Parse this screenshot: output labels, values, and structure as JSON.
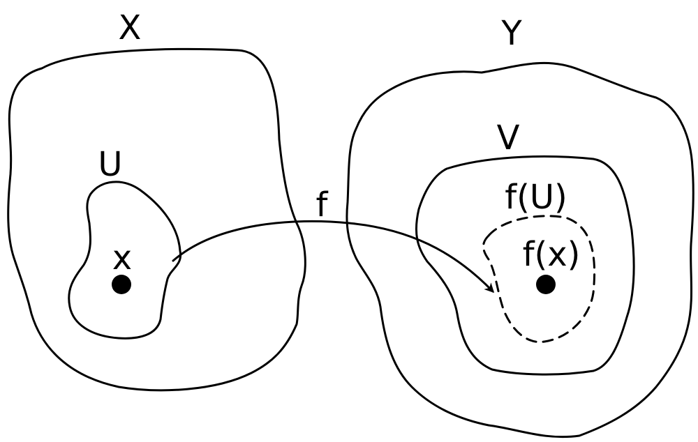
{
  "labels": {
    "set_x": "X",
    "set_y": "Y",
    "set_u": "U",
    "set_v": "V",
    "point_x": "x",
    "map_f": "f",
    "image_u": "f(U)",
    "image_x": "f(x)"
  },
  "colors": {
    "stroke": "#000000",
    "background": "#ffffff"
  }
}
